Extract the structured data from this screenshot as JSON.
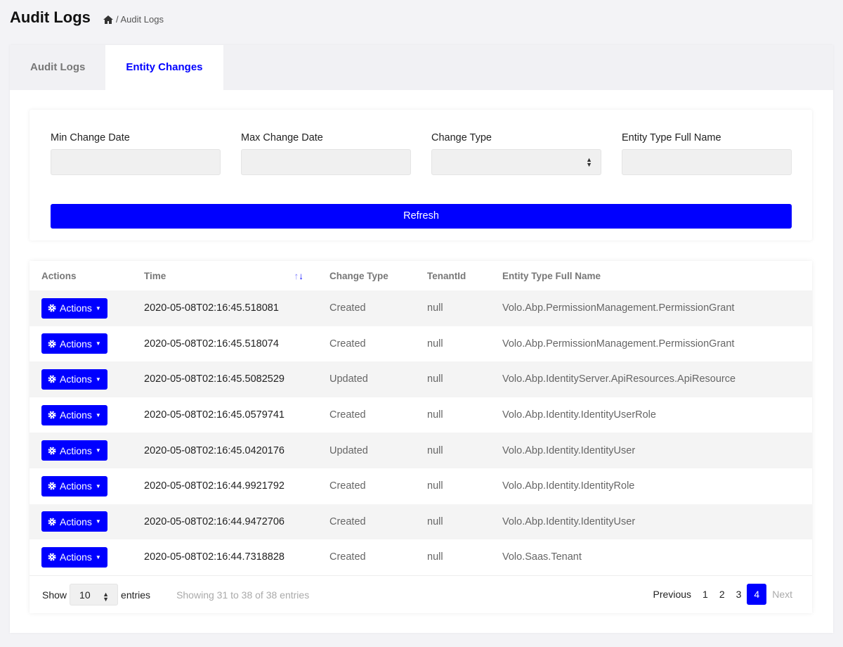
{
  "page": {
    "title": "Audit Logs",
    "breadcrumb": "/ Audit Logs"
  },
  "tabs": [
    {
      "label": "Audit Logs",
      "active": false
    },
    {
      "label": "Entity Changes",
      "active": true
    }
  ],
  "filters": {
    "min_date": {
      "label": "Min Change Date",
      "value": ""
    },
    "max_date": {
      "label": "Max Change Date",
      "value": ""
    },
    "change_type": {
      "label": "Change Type",
      "value": ""
    },
    "entity_type": {
      "label": "Entity Type Full Name",
      "value": ""
    },
    "refresh": "Refresh"
  },
  "table": {
    "headers": [
      "Actions",
      "Time",
      "Change Type",
      "TenantId",
      "Entity Type Full Name"
    ],
    "action_label": "Actions",
    "rows": [
      [
        "2020-05-08T02:16:45.518081",
        "Created",
        "null",
        "Volo.Abp.PermissionManagement.PermissionGrant"
      ],
      [
        "2020-05-08T02:16:45.518074",
        "Created",
        "null",
        "Volo.Abp.PermissionManagement.PermissionGrant"
      ],
      [
        "2020-05-08T02:16:45.5082529",
        "Updated",
        "null",
        "Volo.Abp.IdentityServer.ApiResources.ApiResource"
      ],
      [
        "2020-05-08T02:16:45.0579741",
        "Created",
        "null",
        "Volo.Abp.Identity.IdentityUserRole"
      ],
      [
        "2020-05-08T02:16:45.0420176",
        "Updated",
        "null",
        "Volo.Abp.Identity.IdentityUser"
      ],
      [
        "2020-05-08T02:16:44.9921792",
        "Created",
        "null",
        "Volo.Abp.Identity.IdentityRole"
      ],
      [
        "2020-05-08T02:16:44.9472706",
        "Created",
        "null",
        "Volo.Abp.Identity.IdentityUser"
      ],
      [
        "2020-05-08T02:16:44.7318828",
        "Created",
        "null",
        "Volo.Saas.Tenant"
      ]
    ]
  },
  "footer": {
    "show": "Show",
    "page_size": "10",
    "entries": "entries",
    "info": "Showing 31 to 38 of 38 entries",
    "previous": "Previous",
    "pages": [
      "1",
      "2",
      "3",
      "4"
    ],
    "current_page": "4",
    "next": "Next"
  },
  "colors": {
    "accent": "#0000ff",
    "background": "#f3f3f6"
  }
}
